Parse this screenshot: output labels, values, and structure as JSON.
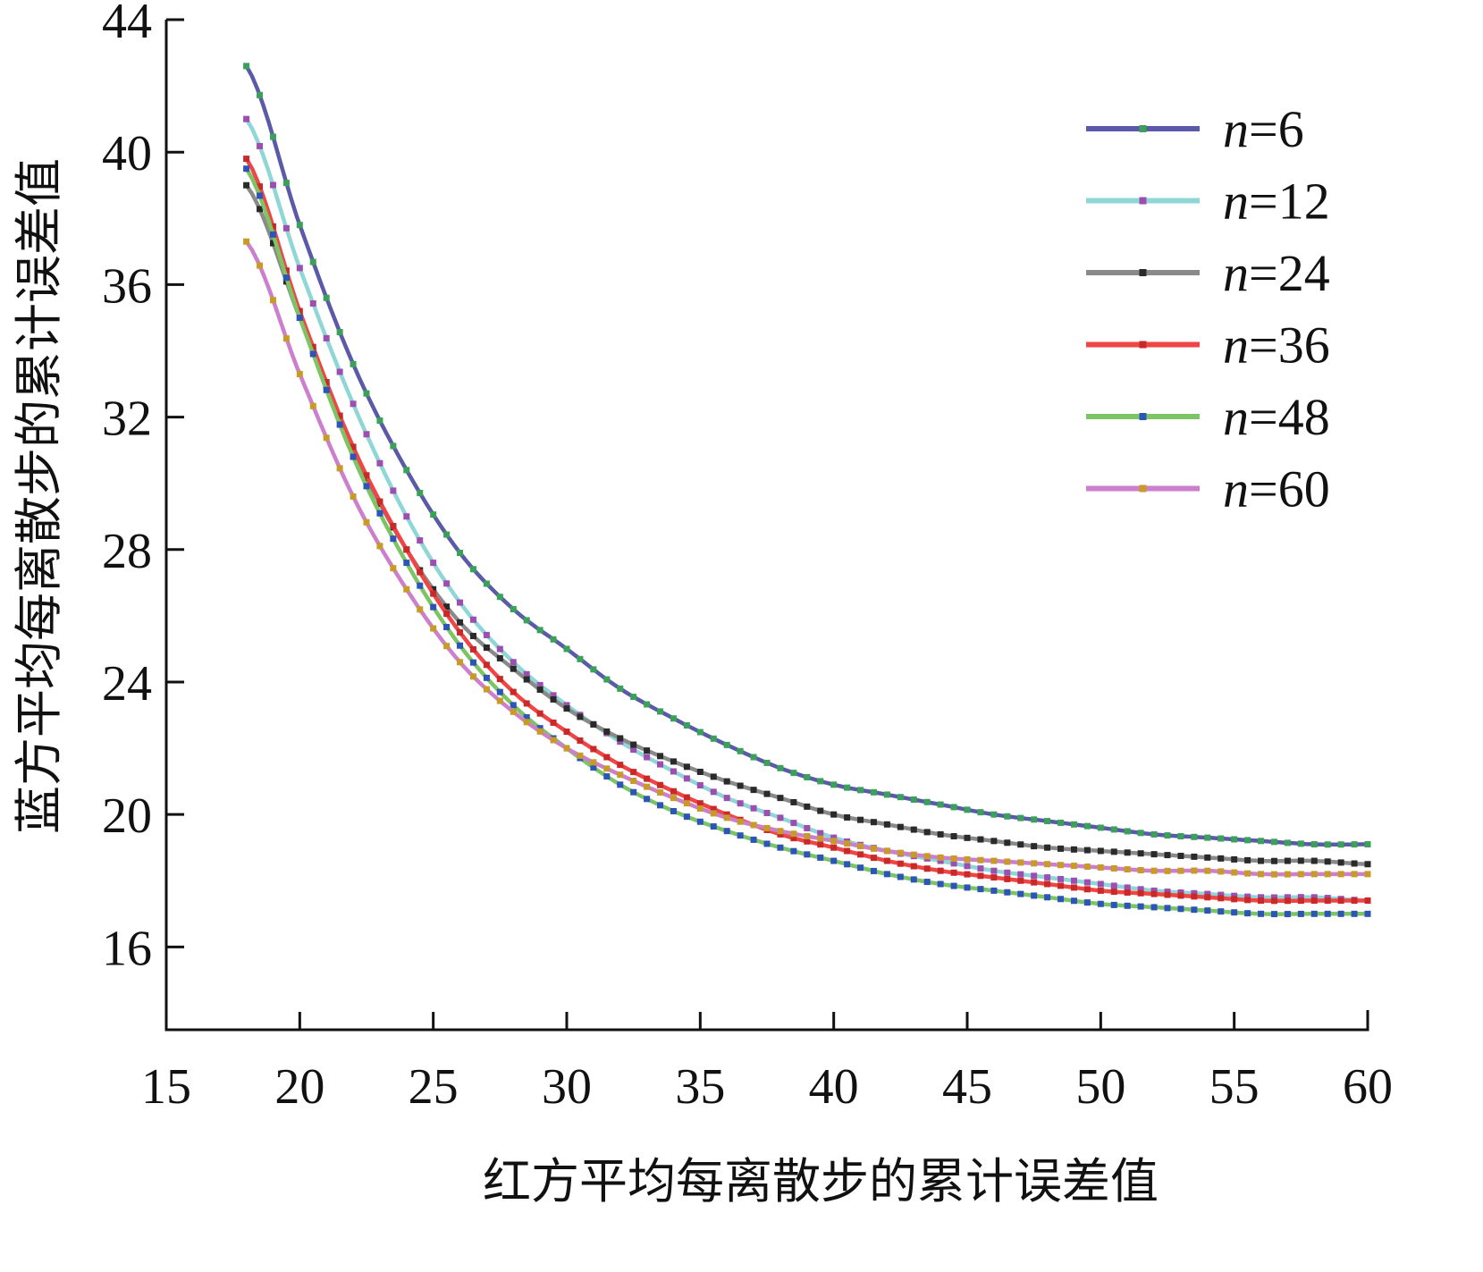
{
  "chart_data": {
    "type": "line",
    "xlabel": "红方平均每离散步的累计误差值",
    "ylabel": "蓝方平均每离散步的累计误差值",
    "xlim": [
      15,
      60
    ],
    "ylim": [
      13.5,
      44
    ],
    "x_ticks": [
      15,
      20,
      25,
      30,
      35,
      40,
      45,
      50,
      55,
      60
    ],
    "y_ticks": [
      16,
      20,
      24,
      28,
      32,
      36,
      40,
      44
    ],
    "x_tick_labels": [
      "15",
      "20",
      "25",
      "30",
      "35",
      "40",
      "45",
      "50",
      "55",
      "60"
    ],
    "y_tick_labels": [
      "16",
      "20",
      "24",
      "28",
      "32",
      "36",
      "40",
      "44"
    ],
    "legend_position": "top-right",
    "grid": false,
    "x": [
      18,
      20,
      22,
      24,
      26,
      28,
      30,
      32,
      34,
      36,
      38,
      40,
      42,
      44,
      46,
      48,
      50,
      52,
      54,
      56,
      58,
      60
    ],
    "series": [
      {
        "name": "n=6",
        "legend_prefix": "n",
        "legend_suffix": "=6",
        "color": "#5a5aa8",
        "marker_color": "#3aa05a",
        "values": [
          42.6,
          37.8,
          33.6,
          30.4,
          27.9,
          26.2,
          25.0,
          23.8,
          22.9,
          22.1,
          21.4,
          20.9,
          20.6,
          20.3,
          20.0,
          19.8,
          19.6,
          19.4,
          19.3,
          19.2,
          19.1,
          19.1
        ]
      },
      {
        "name": "n=12",
        "legend_prefix": "n",
        "legend_suffix": "=12",
        "color": "#8fd6d6",
        "marker_color": "#9c4fb0",
        "values": [
          41.0,
          36.5,
          32.4,
          29.0,
          26.4,
          24.6,
          23.3,
          22.2,
          21.3,
          20.5,
          19.9,
          19.3,
          18.9,
          18.6,
          18.3,
          18.1,
          17.9,
          17.7,
          17.6,
          17.5,
          17.5,
          17.4
        ]
      },
      {
        "name": "n=24",
        "legend_prefix": "n",
        "legend_suffix": "=24",
        "color": "#8a8a8a",
        "marker_color": "#2a2a2a",
        "values": [
          39.0,
          35.0,
          31.0,
          28.0,
          25.8,
          24.4,
          23.2,
          22.3,
          21.6,
          21.0,
          20.5,
          20.0,
          19.7,
          19.4,
          19.2,
          19.0,
          18.9,
          18.8,
          18.7,
          18.6,
          18.6,
          18.5
        ]
      },
      {
        "name": "n=36",
        "legend_prefix": "n",
        "legend_suffix": "=36",
        "color": "#f04545",
        "marker_color": "#c82a2a",
        "values": [
          39.8,
          35.2,
          31.1,
          28.0,
          25.5,
          23.7,
          22.5,
          21.5,
          20.7,
          20.0,
          19.4,
          19.0,
          18.6,
          18.3,
          18.1,
          17.9,
          17.7,
          17.6,
          17.5,
          17.4,
          17.4,
          17.4
        ]
      },
      {
        "name": "n=48",
        "legend_prefix": "n",
        "legend_suffix": "=48",
        "color": "#7cc464",
        "marker_color": "#2d55b8",
        "values": [
          39.5,
          35.0,
          30.8,
          27.6,
          25.1,
          23.3,
          22.0,
          20.9,
          20.1,
          19.5,
          19.0,
          18.6,
          18.2,
          17.9,
          17.7,
          17.5,
          17.3,
          17.2,
          17.1,
          17.0,
          17.0,
          17.0
        ]
      },
      {
        "name": "n=60",
        "legend_prefix": "n",
        "legend_suffix": "=60",
        "color": "#cc7fcc",
        "marker_color": "#c89a28",
        "values": [
          37.3,
          33.3,
          29.6,
          26.8,
          24.6,
          23.1,
          22.0,
          21.2,
          20.5,
          19.9,
          19.5,
          19.2,
          18.9,
          18.7,
          18.6,
          18.5,
          18.4,
          18.3,
          18.3,
          18.2,
          18.2,
          18.2
        ]
      }
    ]
  }
}
